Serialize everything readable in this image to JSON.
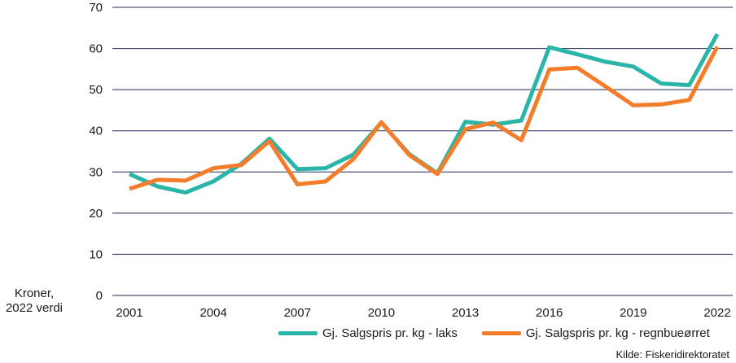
{
  "chart_data": {
    "type": "line",
    "x": [
      2001,
      2002,
      2003,
      2004,
      2005,
      2006,
      2007,
      2008,
      2009,
      2010,
      2011,
      2012,
      2013,
      2014,
      2015,
      2016,
      2017,
      2018,
      2019,
      2020,
      2021,
      2022
    ],
    "x_tick_labels": [
      "2001",
      "2004",
      "2007",
      "2010",
      "2013",
      "2016",
      "2019",
      "2022"
    ],
    "y_tick_labels": [
      "0",
      "10",
      "20",
      "30",
      "40",
      "50",
      "60",
      "70"
    ],
    "ylim": [
      0,
      70
    ],
    "ylabel": "Kroner, 2022 verdi",
    "grid": true,
    "legend_position": "bottom-right",
    "series": [
      {
        "name": "Gj. Salgspris pr. kg - laks",
        "color": "#2bb5a8",
        "values": [
          29.5,
          26.5,
          25,
          27.7,
          32,
          38.1,
          30.7,
          30.9,
          34.2,
          42,
          34.3,
          29.7,
          42.2,
          41.5,
          42.5,
          60.3,
          58.6,
          56.8,
          55.6,
          51.5,
          51.1,
          63.5
        ]
      },
      {
        "name": "Gj. Salgspris pr. kg - regnbueørret",
        "color": "#f47d2c",
        "values": [
          25.9,
          28.1,
          27.9,
          30.9,
          31.7,
          37.5,
          27,
          27.7,
          33.1,
          42.1,
          34.1,
          29.5,
          40.4,
          42,
          37.7,
          54.9,
          55.3,
          50.8,
          46.2,
          46.4,
          47.5,
          60.4
        ]
      }
    ]
  },
  "source": "Kilde: Fiskeridirektoratet"
}
